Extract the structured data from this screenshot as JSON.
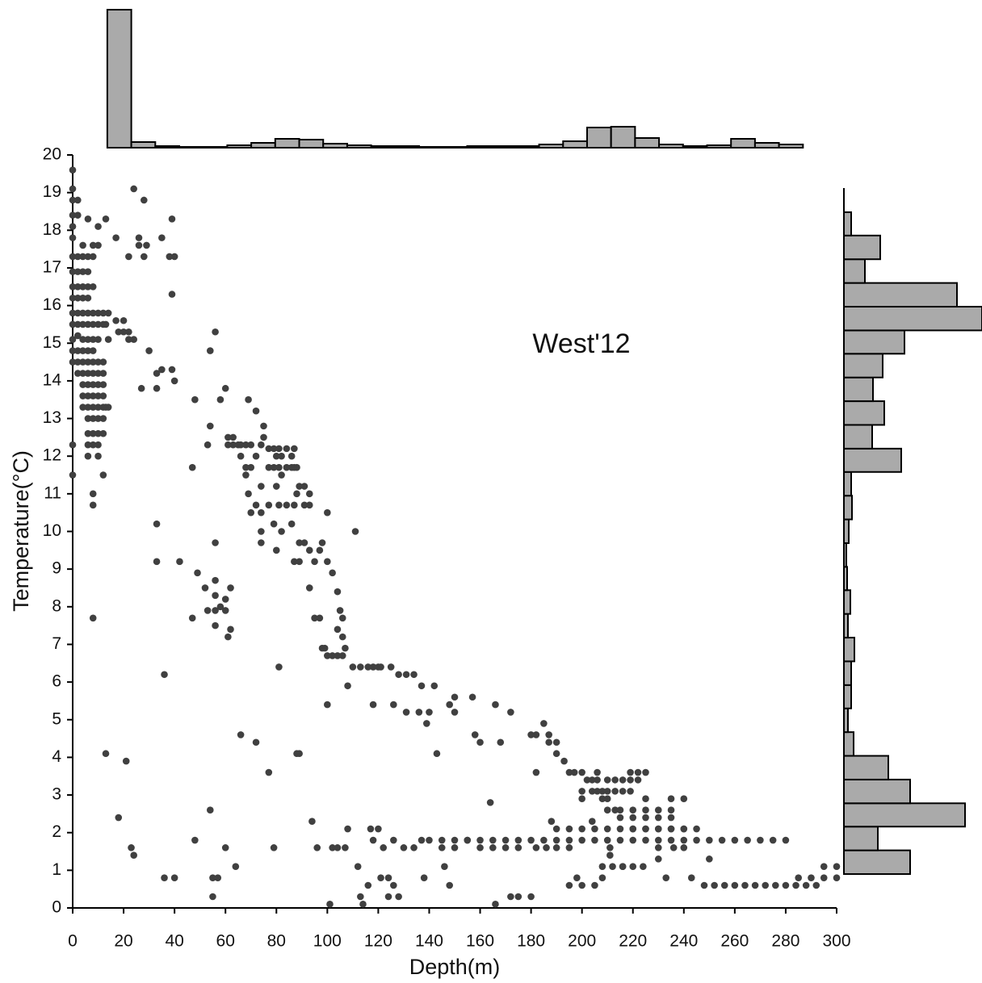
{
  "chart_data": [
    {
      "type": "scatter",
      "annotation": "West'12",
      "x_label": "Depth(m)",
      "y_label": "Temperature(°C)",
      "color": "#404040",
      "xlim": [
        0,
        300
      ],
      "xticks": [
        0,
        20,
        40,
        60,
        80,
        100,
        120,
        140,
        160,
        180,
        200,
        220,
        240,
        260,
        280,
        300
      ],
      "ylim": [
        0,
        20
      ],
      "yticks": [
        0,
        1,
        2,
        3,
        4,
        5,
        6,
        7,
        8,
        9,
        10,
        11,
        12,
        13,
        14,
        15,
        16,
        17,
        18,
        19,
        20
      ],
      "x": [
        0,
        0,
        0,
        0,
        0,
        0,
        0,
        0,
        0,
        0,
        0,
        0,
        0,
        0,
        0,
        0,
        0,
        2,
        2,
        2,
        2,
        2,
        2,
        2,
        2,
        2,
        2,
        2,
        2,
        4,
        4,
        4,
        4,
        4,
        4,
        4,
        4,
        4,
        4,
        4,
        4,
        4,
        4,
        6,
        6,
        6,
        6,
        6,
        6,
        6,
        6,
        6,
        6,
        6,
        6,
        6,
        6,
        6,
        6,
        6,
        6,
        8,
        8,
        8,
        8,
        8,
        8,
        8,
        8,
        8,
        8,
        8,
        8,
        8,
        8,
        8,
        8,
        8,
        8,
        10,
        10,
        10,
        10,
        10,
        10,
        10,
        10,
        10,
        10,
        10,
        10,
        10,
        10,
        12,
        12,
        12,
        12,
        12,
        12,
        12,
        12,
        12,
        12,
        13,
        13,
        13,
        14,
        14,
        14,
        17,
        17,
        18,
        20,
        20,
        22,
        22,
        22,
        24,
        24,
        26,
        26,
        28,
        28,
        29,
        30,
        27,
        33,
        33,
        35,
        35,
        38,
        39,
        39,
        39,
        40,
        40,
        33,
        33,
        42,
        36,
        47,
        47,
        48,
        49,
        52,
        53,
        53,
        54,
        54,
        56,
        56,
        56,
        56,
        56,
        56,
        58,
        58,
        60,
        60,
        60,
        61,
        61,
        61,
        62,
        62,
        63,
        63,
        65,
        66,
        66,
        68,
        68,
        68,
        69,
        69,
        70,
        70,
        70,
        72,
        72,
        72,
        74,
        74,
        74,
        74,
        74,
        75,
        75,
        77,
        77,
        77,
        79,
        79,
        79,
        80,
        80,
        80,
        81,
        81,
        81,
        82,
        82,
        82,
        84,
        84,
        84,
        86,
        86,
        86,
        87,
        87,
        87,
        87,
        88,
        88,
        89,
        89,
        89,
        91,
        91,
        91,
        93,
        93,
        93,
        93,
        95,
        95,
        97,
        97,
        98,
        98,
        99,
        100,
        100,
        100,
        102,
        102,
        104,
        104,
        104,
        105,
        106,
        106,
        106,
        107,
        110,
        111,
        113,
        116,
        118,
        120,
        121,
        125,
        128,
        131,
        134,
        137,
        142,
        148,
        150,
        157,
        166,
        168,
        172,
        180,
        182,
        185,
        187,
        187,
        190,
        190,
        193,
        195,
        197,
        200,
        200,
        202,
        204,
        204,
        206,
        206,
        206,
        208,
        208,
        210,
        210,
        213,
        213,
        213,
        216,
        216,
        219,
        219,
        219,
        222,
        222,
        225,
        225,
        200,
        210,
        210,
        215,
        215,
        220,
        220,
        220,
        225,
        225,
        225,
        230,
        230,
        230,
        235,
        235,
        235,
        235,
        240,
        240,
        230,
        236,
        240,
        208,
        212,
        216,
        220,
        224,
        285,
        290,
        295,
        300,
        295,
        300,
        13,
        140,
        145,
        150,
        155,
        160,
        165,
        170,
        175,
        180,
        185,
        190,
        195,
        200,
        205,
        210,
        215,
        220,
        225,
        230,
        235,
        240,
        245,
        250,
        255,
        260,
        265,
        270,
        275,
        280,
        190,
        195,
        200,
        205,
        210,
        215,
        220,
        225,
        230,
        235,
        240,
        245,
        248,
        252,
        256,
        260,
        264,
        268,
        272,
        276,
        280,
        284,
        288,
        292,
        21,
        18,
        23,
        24,
        36,
        40,
        48,
        54,
        55,
        55,
        57,
        60,
        64,
        66,
        72,
        77,
        79,
        81,
        88,
        89,
        94,
        96,
        100,
        101,
        102,
        104,
        107,
        108,
        108,
        112,
        113,
        114,
        116,
        117,
        118,
        118,
        120,
        121,
        122,
        124,
        124,
        126,
        126,
        126,
        128,
        130,
        131,
        134,
        136,
        137,
        138,
        139,
        140,
        143,
        145,
        146,
        148,
        150,
        150,
        155,
        158,
        160,
        160,
        164,
        165,
        166,
        170,
        172,
        175,
        175,
        180,
        182,
        186,
        188,
        182,
        190,
        195,
        195,
        198,
        200,
        205,
        208,
        204,
        211,
        211,
        216,
        230,
        233,
        243,
        250
      ],
      "values": [
        19.6,
        19.1,
        18.8,
        18.4,
        18.1,
        17.8,
        17.3,
        16.9,
        16.5,
        16.2,
        15.8,
        15.5,
        15.1,
        14.8,
        14.5,
        12.3,
        11.5,
        18.8,
        18.4,
        17.3,
        16.9,
        16.5,
        16.2,
        15.8,
        15.5,
        15.2,
        14.8,
        14.5,
        14.2,
        17.6,
        17.3,
        16.9,
        16.5,
        16.2,
        15.8,
        15.5,
        15.1,
        14.8,
        14.5,
        14.2,
        13.9,
        13.6,
        13.3,
        18.3,
        17.3,
        16.9,
        16.5,
        16.2,
        15.8,
        15.5,
        15.1,
        14.8,
        14.5,
        14.2,
        13.9,
        13.6,
        13.3,
        13.0,
        12.6,
        12.3,
        12.0,
        17.6,
        17.3,
        16.5,
        15.8,
        15.5,
        15.1,
        14.8,
        14.5,
        14.2,
        13.9,
        13.6,
        13.3,
        13.0,
        12.6,
        12.3,
        11.0,
        10.7,
        7.7,
        18.1,
        17.6,
        15.8,
        15.5,
        15.1,
        14.5,
        14.2,
        13.9,
        13.6,
        13.3,
        13.0,
        12.6,
        12.3,
        12.0,
        15.8,
        15.5,
        14.5,
        14.2,
        13.9,
        13.6,
        13.3,
        13.0,
        12.6,
        11.5,
        18.3,
        15.5,
        13.3,
        15.8,
        15.1,
        13.3,
        17.8,
        15.6,
        15.3,
        15.6,
        15.3,
        17.3,
        15.3,
        15.1,
        15.1,
        19.1,
        17.8,
        17.6,
        18.8,
        17.3,
        17.6,
        14.8,
        13.8,
        13.8,
        14.2,
        17.8,
        14.3,
        17.3,
        18.3,
        16.3,
        14.3,
        17.3,
        14.0,
        10.2,
        9.2,
        9.2,
        6.2,
        11.7,
        7.7,
        13.5,
        8.9,
        8.5,
        12.3,
        7.9,
        12.8,
        14.8,
        15.3,
        9.7,
        8.7,
        8.3,
        7.9,
        7.5,
        8.0,
        13.5,
        13.8,
        8.2,
        7.9,
        12.5,
        12.3,
        7.2,
        8.5,
        7.4,
        12.5,
        12.3,
        12.3,
        12.3,
        12.0,
        12.3,
        11.7,
        11.5,
        13.5,
        11.0,
        12.3,
        10.5,
        11.7,
        13.2,
        12.0,
        10.7,
        12.3,
        11.2,
        10.5,
        10.0,
        9.7,
        12.5,
        12.8,
        12.2,
        11.7,
        10.7,
        12.2,
        11.7,
        10.2,
        12.0,
        11.2,
        9.5,
        12.2,
        11.7,
        10.7,
        12.0,
        11.5,
        10.0,
        12.2,
        11.7,
        10.7,
        12.0,
        11.7,
        10.2,
        12.2,
        11.7,
        10.7,
        9.2,
        11.7,
        11.0,
        11.2,
        9.7,
        9.2,
        11.2,
        9.7,
        10.7,
        11.0,
        9.5,
        8.5,
        10.7,
        9.2,
        7.7,
        9.5,
        7.7,
        6.9,
        9.7,
        6.9,
        10.5,
        9.2,
        6.7,
        8.9,
        6.7,
        8.4,
        7.4,
        6.7,
        7.9,
        7.7,
        7.2,
        6.7,
        6.9,
        6.4,
        10.0,
        6.4,
        6.4,
        6.4,
        6.4,
        6.4,
        6.4,
        6.2,
        6.2,
        6.2,
        5.9,
        5.9,
        5.4,
        5.6,
        5.6,
        5.4,
        4.4,
        5.2,
        4.6,
        4.6,
        4.9,
        4.4,
        4.6,
        4.1,
        4.4,
        3.9,
        3.6,
        3.6,
        3.6,
        3.1,
        3.4,
        3.4,
        3.1,
        3.6,
        3.4,
        3.1,
        3.1,
        2.9,
        3.4,
        3.1,
        3.4,
        3.1,
        2.6,
        3.4,
        3.1,
        3.6,
        3.4,
        3.1,
        3.6,
        3.4,
        3.6,
        2.9,
        2.9,
        2.9,
        2.6,
        2.6,
        2.4,
        2.6,
        2.4,
        2.1,
        2.6,
        2.4,
        2.1,
        2.6,
        2.4,
        2.1,
        2.9,
        2.6,
        2.4,
        2.1,
        2.9,
        2.1,
        1.6,
        1.6,
        1.6,
        1.1,
        1.1,
        1.1,
        1.1,
        1.1,
        0.8,
        0.8,
        0.8,
        0.8,
        1.1,
        1.1,
        4.1,
        1.8,
        1.8,
        1.8,
        1.8,
        1.8,
        1.8,
        1.8,
        1.8,
        1.8,
        1.8,
        1.8,
        1.8,
        1.8,
        1.8,
        1.8,
        1.8,
        1.8,
        1.8,
        1.8,
        1.8,
        1.8,
        1.8,
        1.8,
        1.8,
        1.8,
        1.8,
        1.8,
        1.8,
        1.8,
        2.1,
        2.1,
        2.1,
        2.1,
        2.1,
        2.1,
        2.1,
        2.1,
        2.1,
        2.1,
        2.1,
        2.1,
        0.6,
        0.6,
        0.6,
        0.6,
        0.6,
        0.6,
        0.6,
        0.6,
        0.6,
        0.6,
        0.6,
        0.6,
        3.9,
        2.4,
        1.6,
        1.4,
        0.8,
        0.8,
        1.8,
        2.6,
        0.3,
        0.8,
        0.8,
        1.6,
        1.1,
        4.6,
        4.4,
        3.6,
        1.6,
        6.4,
        4.1,
        4.1,
        2.3,
        1.6,
        5.4,
        0.1,
        1.6,
        1.6,
        1.6,
        2.1,
        5.9,
        1.1,
        0.3,
        0.1,
        0.6,
        2.1,
        1.8,
        5.4,
        2.1,
        0.8,
        1.6,
        0.8,
        0.3,
        5.4,
        1.8,
        0.6,
        0.3,
        1.6,
        5.2,
        1.6,
        5.2,
        1.8,
        0.8,
        4.9,
        5.2,
        4.1,
        1.6,
        1.1,
        0.6,
        1.6,
        5.2,
        1.8,
        4.6,
        1.6,
        4.4,
        2.8,
        1.6,
        0.1,
        1.6,
        0.3,
        0.3,
        1.6,
        0.3,
        1.6,
        1.6,
        2.3,
        3.6,
        1.6,
        1.6,
        0.6,
        0.8,
        0.6,
        0.6,
        0.8,
        2.3,
        1.6,
        1.4,
        1.1,
        1.3,
        0.8,
        0.8,
        1.3
      ]
    },
    {
      "type": "histogram",
      "orientation": "vertical",
      "color": "#aaaaaa",
      "bins": [
        13.6,
        23.02,
        32.44,
        41.86,
        51.28,
        60.7,
        70.12,
        79.54,
        88.96,
        98.38,
        107.8,
        117.22,
        126.64,
        136.06,
        145.48,
        154.9,
        164.32,
        173.74,
        183.16,
        192.58,
        202,
        211.42,
        220.84,
        230.26,
        239.68,
        249.1,
        258.52,
        267.94,
        277.36,
        286.78
      ],
      "counts": [
        171,
        7,
        2,
        1,
        1,
        3,
        6,
        11,
        10,
        5,
        3,
        2,
        2,
        1,
        1,
        2,
        2,
        2,
        4,
        8,
        25,
        26,
        12,
        4,
        2,
        3,
        11,
        6,
        4
      ]
    },
    {
      "type": "histogram",
      "orientation": "horizontal",
      "color": "#aaaaaa",
      "bins": [
        0.9,
        1.53,
        2.16,
        2.78,
        3.41,
        4.04,
        4.67,
        5.3,
        5.92,
        6.55,
        7.18,
        7.81,
        8.44,
        9.06,
        9.69,
        10.32,
        10.95,
        11.58,
        12.2,
        12.83,
        13.46,
        14.09,
        14.72,
        15.34,
        15.97,
        16.6,
        17.23,
        17.86,
        18.48
      ],
      "counts": [
        82,
        42,
        150,
        82,
        55,
        12,
        5,
        9,
        9,
        13,
        5,
        8,
        4,
        3,
        6,
        10,
        9,
        71,
        35,
        50,
        36,
        48,
        75,
        171,
        140,
        26,
        45,
        9
      ]
    }
  ]
}
